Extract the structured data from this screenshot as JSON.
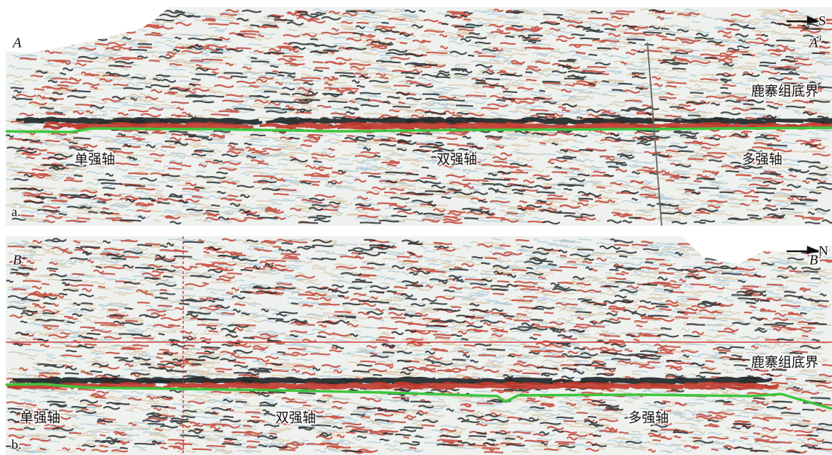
{
  "panels": [
    {
      "label": "a.",
      "start": "A",
      "end": "A′",
      "direction": "S",
      "horizon": "鹿寨组底界",
      "annotations": [
        "单强轴",
        "双强轴",
        "多强轴"
      ]
    },
    {
      "label": "b.",
      "start": "B",
      "end": "B′",
      "direction": "N",
      "horizon": "鹿寨组底界",
      "annotations": [
        "单强轴",
        "双强轴",
        "多强轴"
      ]
    }
  ]
}
